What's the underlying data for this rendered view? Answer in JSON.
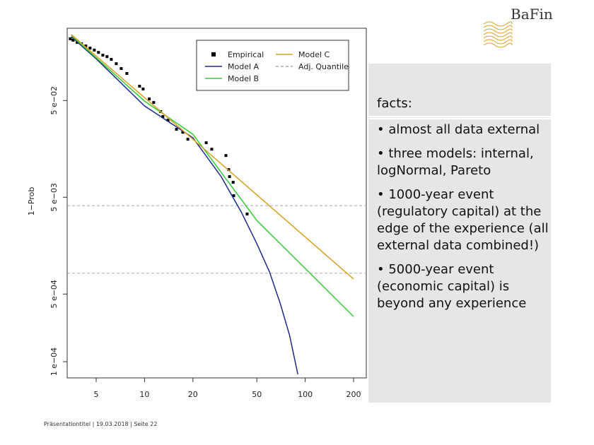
{
  "logo": "BaFin",
  "chart_data": {
    "type": "line",
    "ylabel": "1−Prob",
    "xlog": true,
    "ylog": true,
    "xlim": [
      3.3,
      240
    ],
    "ylim": [
      6.8e-05,
      0.279
    ],
    "xticks": [
      5,
      10,
      20,
      50,
      100,
      200
    ],
    "yticks": [
      {
        "value": 0.05,
        "label": "5 e−02"
      },
      {
        "value": 0.005,
        "label": "5 e−03"
      },
      {
        "value": 0.0005,
        "label": "5 e−04"
      },
      {
        "value": 0.0001,
        "label": "1 e−04"
      }
    ],
    "legend": "top right",
    "series": [
      {
        "name": "Empirical",
        "color": "#000000",
        "mode": "points",
        "x": [
          3.45,
          3.59,
          3.81,
          4.05,
          4.31,
          4.58,
          4.87,
          5.17,
          5.5,
          5.84,
          6.21,
          6.67,
          7.16,
          7.76,
          9.31,
          9.8,
          10.7,
          11.4,
          12.6,
          13.0,
          14.0,
          15.8,
          17.3,
          18.6,
          24.2,
          26.2,
          32.1,
          33.4,
          33.8,
          35.6,
          35.9,
          43.5
        ],
        "values": [
          0.217,
          0.21,
          0.199,
          0.193,
          0.183,
          0.174,
          0.166,
          0.157,
          0.147,
          0.142,
          0.133,
          0.12,
          0.107,
          0.0951,
          0.0703,
          0.0657,
          0.0519,
          0.0477,
          0.0384,
          0.0341,
          0.0313,
          0.0252,
          0.0235,
          0.0199,
          0.0183,
          0.0157,
          0.0135,
          0.00966,
          0.00817,
          0.00714,
          0.00519,
          0.00336
        ]
      },
      {
        "name": "Model A",
        "color": "#1a2a8c",
        "mode": "line",
        "x": [
          3.5,
          5,
          10,
          20,
          30,
          40,
          50,
          60,
          70,
          80,
          90
        ],
        "values": [
          0.228,
          0.135,
          0.0439,
          0.0206,
          0.00817,
          0.00352,
          0.00166,
          0.000845,
          0.000397,
          0.000186,
          7.4e-05
        ]
      },
      {
        "name": "Model B",
        "color": "#33cc33",
        "mode": "line",
        "x": [
          3.5,
          10,
          20,
          50,
          100,
          200
        ],
        "values": [
          0.235,
          0.0493,
          0.0224,
          0.00288,
          0.00092,
          0.000293
        ]
      },
      {
        "name": "Model C",
        "color": "#d9a020",
        "mode": "line",
        "x": [
          3.5,
          20,
          200
        ],
        "values": [
          0.24,
          0.0199,
          0.000714
        ]
      }
    ],
    "hlines": {
      "name": "Adj. Quantile",
      "color": "#aaaaaa",
      "values": [
        0.0041,
        0.00082
      ]
    }
  },
  "facts": {
    "title": "facts:",
    "items": [
      "• almost all data external",
      "• three models: internal, logNormal, Pareto",
      "• 1000-year event (regulatory capital) at the edge of the experience (all external data combined!)",
      "• 5000-year event (economic capital) is beyond any experience"
    ]
  },
  "footer": "Präsentationtitel | 19.03.2018 | Seite 22"
}
